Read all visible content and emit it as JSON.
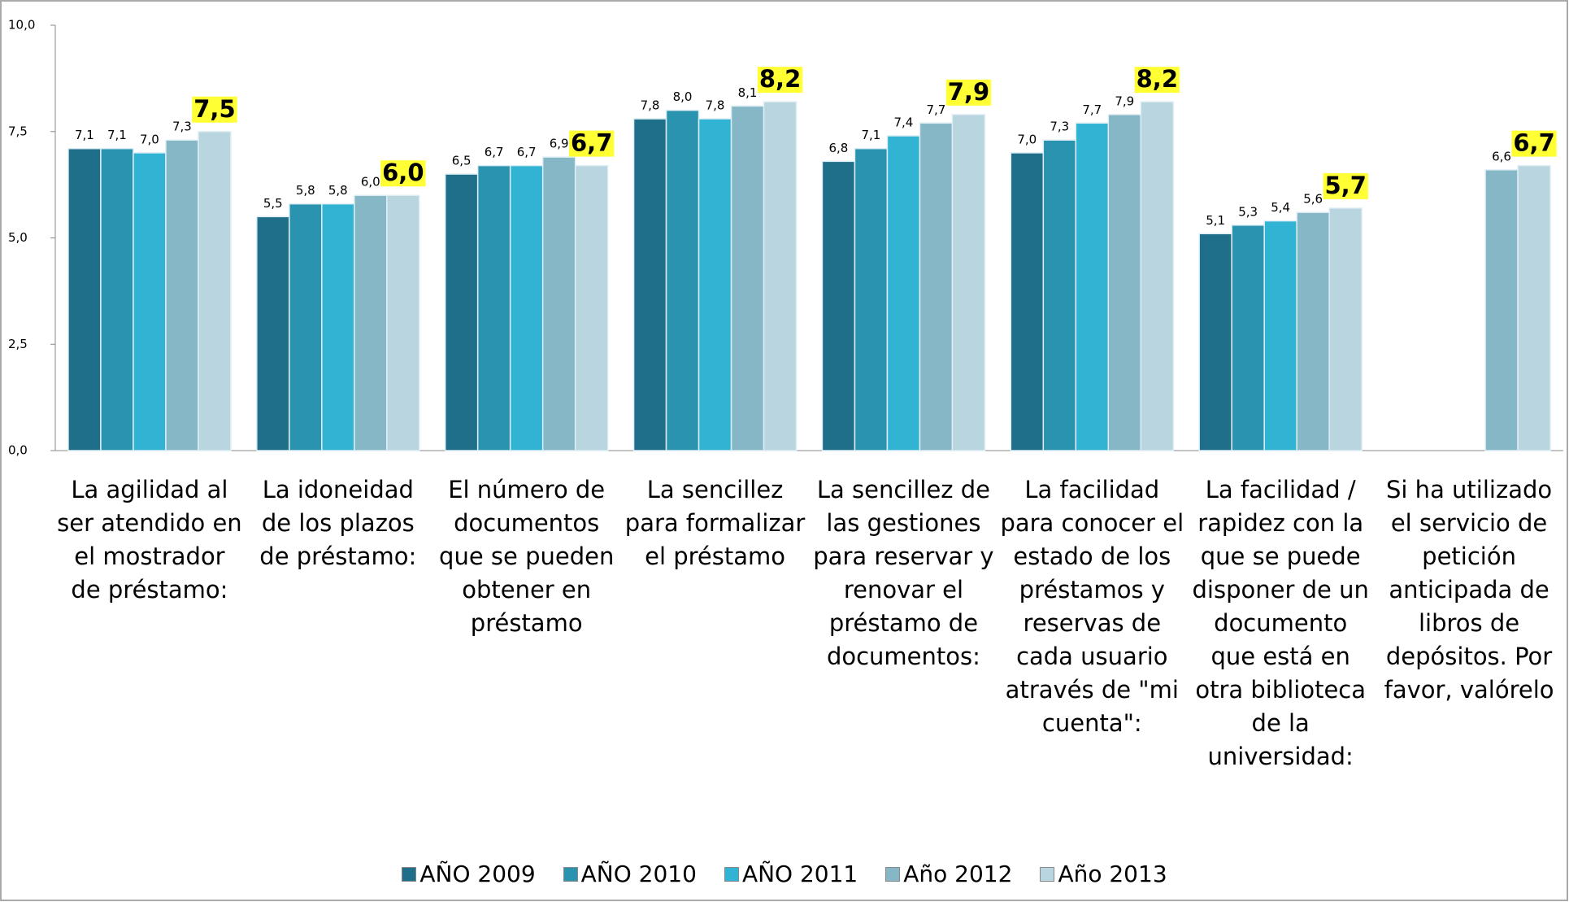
{
  "chart_data": {
    "type": "bar",
    "categories": [
      "La agilidad al ser atendido en el mostrador de préstamo:",
      "La idoneidad de los plazos de préstamo:",
      "El número de documentos que se pueden obtener en préstamo",
      "La sencillez para formalizar el préstamo",
      "La sencillez de las gestiones para reservar y renovar el préstamo de documentos:",
      "La facilidad para conocer el estado de los préstamos y reservas de cada usuario através de \"mi cuenta\":",
      "La facilidad / rapidez con la que se puede disponer de un documento que está en otra biblioteca de la universidad:",
      "Si ha utilizado el servicio de petición anticipada de libros de depósitos. Por favor, valórelo"
    ],
    "series": [
      {
        "name": "AÑO 2009",
        "color": "#1f6f8b",
        "values": [
          7.1,
          5.5,
          6.5,
          7.8,
          6.8,
          7.0,
          5.1,
          null
        ],
        "value_labels": [
          "7,1",
          "5,5",
          "6,5",
          "7,8",
          "6,8",
          "7,0",
          "5,1",
          null
        ]
      },
      {
        "name": "AÑO 2010",
        "color": "#2a93b0",
        "values": [
          7.1,
          5.8,
          6.7,
          8.0,
          7.1,
          7.3,
          5.3,
          null
        ],
        "value_labels": [
          "7,1",
          "5,8",
          "6,7",
          "8,0",
          "7,1",
          "7,3",
          "5,3",
          null
        ]
      },
      {
        "name": "AÑO 2011",
        "color": "#31b3d4",
        "values": [
          7.0,
          5.8,
          6.7,
          7.8,
          7.4,
          7.7,
          5.4,
          null
        ],
        "value_labels": [
          "7,0",
          "5,8",
          "6,7",
          "7,8",
          "7,4",
          "7,7",
          "5,4",
          null
        ]
      },
      {
        "name": "Año 2012",
        "color": "#86b7c7",
        "values": [
          7.3,
          6.0,
          6.9,
          8.1,
          7.7,
          7.9,
          5.6,
          6.6
        ],
        "value_labels": [
          "7,3",
          "6,0",
          "6,9",
          "8,1",
          "7,7",
          "7,9",
          "5,6",
          "6,6"
        ]
      },
      {
        "name": "Año 2013",
        "color": "#b9d5df",
        "values": [
          7.5,
          6.0,
          6.7,
          8.2,
          7.9,
          8.2,
          5.7,
          6.7
        ],
        "value_labels": [
          "7,5",
          "6,0",
          "6,7",
          "8,2",
          "7,9",
          "8,2",
          "5,7",
          "6,7"
        ]
      }
    ],
    "ylim": [
      0,
      10
    ],
    "yticks": [
      {
        "value": 0,
        "label": "0,0"
      },
      {
        "value": 2.5,
        "label": "2,5"
      },
      {
        "value": 5,
        "label": "5,0"
      },
      {
        "value": 7.5,
        "label": "7,5"
      },
      {
        "value": 10,
        "label": "10,0"
      }
    ],
    "legend": "bottom"
  }
}
